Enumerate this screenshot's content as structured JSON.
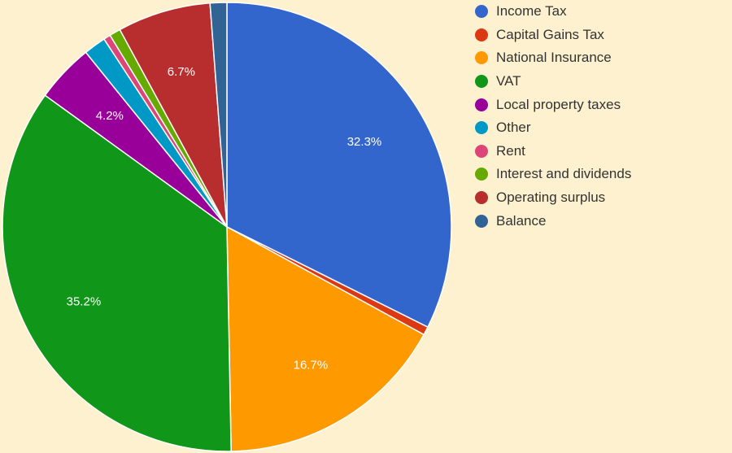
{
  "chart_data": {
    "type": "pie",
    "title": "",
    "legend_position": "right",
    "slices": [
      {
        "name": "Income Tax",
        "value": 32.3,
        "label": "32.3%",
        "color": "#3366cc"
      },
      {
        "name": "Capital Gains Tax",
        "value": 0.6,
        "label": "",
        "color": "#dc3912"
      },
      {
        "name": "National Insurance",
        "value": 16.7,
        "label": "16.7%",
        "color": "#ff9900"
      },
      {
        "name": "VAT",
        "value": 35.2,
        "label": "35.2%",
        "color": "#109618"
      },
      {
        "name": "Local property taxes",
        "value": 4.2,
        "label": "4.2%",
        "color": "#990099"
      },
      {
        "name": "Other",
        "value": 1.6,
        "label": "",
        "color": "#0099c6"
      },
      {
        "name": "Rent",
        "value": 0.5,
        "label": "",
        "color": "#dd4477"
      },
      {
        "name": "Interest and dividends",
        "value": 0.8,
        "label": "",
        "color": "#66aa00"
      },
      {
        "name": "Operating surplus",
        "value": 6.7,
        "label": "6.7%",
        "color": "#b82e2e"
      },
      {
        "name": "Balance",
        "value": 1.2,
        "label": "",
        "color": "#316395"
      }
    ]
  }
}
